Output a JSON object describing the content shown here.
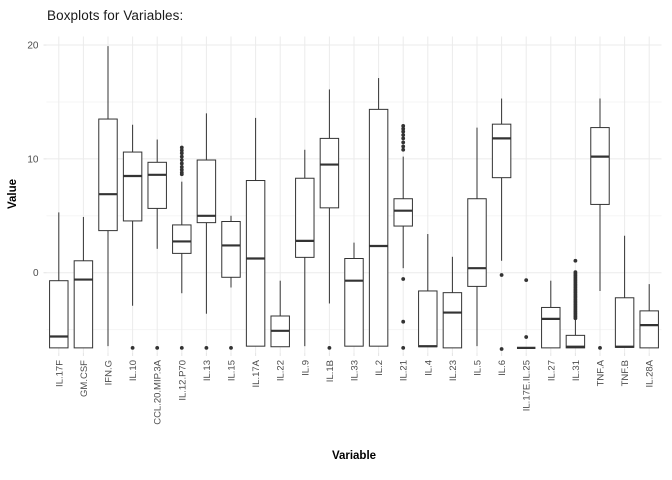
{
  "chart_data": {
    "type": "boxplot",
    "title": "Boxplots for Variables:",
    "xlabel": "Variable",
    "ylabel": "Value",
    "legend": "none",
    "grid": "on",
    "ylim": [
      -7.05,
      20.75
    ],
    "y_major_ticks": [
      0,
      10,
      20
    ],
    "y_minor_gridlines": [
      -5,
      5,
      15
    ],
    "categories": [
      "IL.17F",
      "GM.CSF",
      "IFN.G",
      "IL.10",
      "CCL.20.MIP.3A",
      "IL.12.P70",
      "IL.13",
      "IL.15",
      "IL.17A",
      "IL.22",
      "IL.9",
      "IL.1B",
      "IL.33",
      "IL.2",
      "IL.21",
      "IL.4",
      "IL.23",
      "IL.5",
      "IL.6",
      "IL.17E.IL.25",
      "IL.27",
      "IL.31",
      "TNF.A",
      "TNF.B",
      "IL.28A"
    ],
    "boxes": [
      {
        "label": "IL.17F",
        "whisker_low": -6.6,
        "q1": -6.6,
        "median": -5.6,
        "q3": -0.7,
        "whisker_high": 5.3,
        "outliers": []
      },
      {
        "label": "GM.CSF",
        "whisker_low": -6.6,
        "q1": -6.6,
        "median": -0.6,
        "q3": 1.05,
        "whisker_high": 4.9,
        "outliers": []
      },
      {
        "label": "IFN.G",
        "whisker_low": -6.45,
        "q1": 3.7,
        "median": 6.9,
        "q3": 13.5,
        "whisker_high": 19.9,
        "outliers": []
      },
      {
        "label": "IL.10",
        "whisker_low": -2.9,
        "q1": 4.55,
        "median": 8.5,
        "q3": 10.6,
        "whisker_high": 13.0,
        "outliers": [
          -6.6
        ]
      },
      {
        "label": "CCL.20.MIP.3A",
        "whisker_low": 2.1,
        "q1": 5.65,
        "median": 8.6,
        "q3": 9.7,
        "whisker_high": 11.7,
        "outliers": [
          -6.6
        ]
      },
      {
        "label": "IL.12.P70",
        "whisker_low": -1.8,
        "q1": 1.7,
        "median": 2.75,
        "q3": 4.2,
        "whisker_high": 8.0,
        "outliers": [
          11.0,
          10.75,
          10.5,
          10.2,
          9.9,
          9.6,
          9.3,
          9.05,
          8.8,
          8.65,
          -6.6
        ]
      },
      {
        "label": "IL.13",
        "whisker_low": -3.6,
        "q1": 4.4,
        "median": 5.0,
        "q3": 9.9,
        "whisker_high": 14.0,
        "outliers": [
          -6.6
        ]
      },
      {
        "label": "IL.15",
        "whisker_low": -1.3,
        "q1": -0.4,
        "median": 2.4,
        "q3": 4.5,
        "whisker_high": 5.0,
        "outliers": [
          -6.6
        ]
      },
      {
        "label": "IL.17A",
        "whisker_low": -6.45,
        "q1": -6.45,
        "median": 1.25,
        "q3": 8.1,
        "whisker_high": 13.6,
        "outliers": []
      },
      {
        "label": "IL.22",
        "whisker_low": -6.5,
        "q1": -6.5,
        "median": -5.1,
        "q3": -3.8,
        "whisker_high": -0.7,
        "outliers": []
      },
      {
        "label": "IL.9",
        "whisker_low": -6.45,
        "q1": 1.35,
        "median": 2.8,
        "q3": 8.3,
        "whisker_high": 10.8,
        "outliers": []
      },
      {
        "label": "IL.1B",
        "whisker_low": -2.7,
        "q1": 5.7,
        "median": 9.5,
        "q3": 11.8,
        "whisker_high": 16.1,
        "outliers": [
          -6.6
        ]
      },
      {
        "label": "IL.33",
        "whisker_low": -6.45,
        "q1": -6.45,
        "median": -0.7,
        "q3": 1.25,
        "whisker_high": 2.65,
        "outliers": []
      },
      {
        "label": "IL.2",
        "whisker_low": -6.45,
        "q1": -6.45,
        "median": 2.35,
        "q3": 14.35,
        "whisker_high": 17.1,
        "outliers": []
      },
      {
        "label": "IL.21",
        "whisker_low": 0.4,
        "q1": 4.1,
        "median": 5.45,
        "q3": 6.5,
        "whisker_high": 10.2,
        "outliers": [
          12.9,
          12.65,
          12.4,
          12.1,
          11.8,
          11.45,
          11.1,
          10.8,
          -0.55,
          -4.3,
          -6.6
        ]
      },
      {
        "label": "IL.4",
        "whisker_low": -6.5,
        "q1": -6.5,
        "median": -6.45,
        "q3": -1.6,
        "whisker_high": 3.4,
        "outliers": []
      },
      {
        "label": "IL.23",
        "whisker_low": -6.6,
        "q1": -6.6,
        "median": -3.5,
        "q3": -1.75,
        "whisker_high": 1.4,
        "outliers": []
      },
      {
        "label": "IL.5",
        "whisker_low": -6.45,
        "q1": -1.2,
        "median": 0.4,
        "q3": 6.5,
        "whisker_high": 12.75,
        "outliers": []
      },
      {
        "label": "IL.6",
        "whisker_low": 1.05,
        "q1": 8.35,
        "median": 11.8,
        "q3": 13.05,
        "whisker_high": 15.3,
        "outliers": [
          -0.2,
          -6.7
        ]
      },
      {
        "label": "IL.17E.IL.25",
        "whisker_low": -6.6,
        "q1": -6.6,
        "median": -6.6,
        "q3": -6.6,
        "whisker_high": -6.6,
        "outliers": [
          -0.65,
          -5.65
        ]
      },
      {
        "label": "IL.27",
        "whisker_low": -6.6,
        "q1": -6.6,
        "median": -4.05,
        "q3": -3.05,
        "whisker_high": -0.7,
        "outliers": []
      },
      {
        "label": "IL.31",
        "whisker_low": -6.6,
        "q1": -6.6,
        "median": -6.5,
        "q3": -5.5,
        "whisker_high": -4.1,
        "outliers": [
          1.05,
          0.05,
          -0.1,
          -0.25,
          -0.4,
          -0.55,
          -0.7,
          -0.85,
          -1.0,
          -1.15,
          -1.3,
          -1.45,
          -1.6,
          -1.75,
          -1.9,
          -2.05,
          -2.2,
          -2.35,
          -2.5,
          -2.65,
          -2.8,
          -2.95,
          -3.1,
          -3.25,
          -3.4,
          -3.55,
          -3.7,
          -3.85,
          -4.0
        ]
      },
      {
        "label": "TNF.A",
        "whisker_low": -1.6,
        "q1": 6.0,
        "median": 10.2,
        "q3": 12.75,
        "whisker_high": 15.3,
        "outliers": [
          -6.6
        ]
      },
      {
        "label": "TNF.B",
        "whisker_low": -6.55,
        "q1": -6.55,
        "median": -6.5,
        "q3": -2.2,
        "whisker_high": 3.25,
        "outliers": []
      },
      {
        "label": "IL.28A",
        "whisker_low": -6.6,
        "q1": -6.6,
        "median": -4.6,
        "q3": -3.35,
        "whisker_high": -1.0,
        "outliers": []
      }
    ],
    "colors": {
      "box_stroke": "#333333",
      "box_fill": "#ffffff",
      "outlier_fill": "#333333",
      "grid_major": "#ebebeb",
      "grid_minor": "#f5f5f5",
      "tick_mark": "#e4e4e4",
      "tick_label": "#4d4d4d",
      "title_color": "#1a1a1a",
      "background": "#ffffff"
    }
  }
}
